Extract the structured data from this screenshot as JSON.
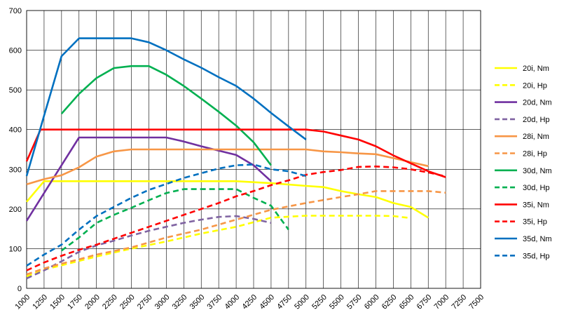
{
  "chart_data": {
    "type": "line",
    "title": "",
    "xlabel": "",
    "ylabel": "",
    "xlim": [
      1000,
      7500
    ],
    "ylim": [
      0,
      700
    ],
    "x_ticks": [
      1000,
      1250,
      1500,
      1750,
      2000,
      2250,
      2500,
      2750,
      3000,
      3250,
      3500,
      3750,
      4000,
      4250,
      4500,
      4750,
      5000,
      5250,
      5500,
      5750,
      6000,
      6250,
      6500,
      6750,
      7000,
      7250,
      7500
    ],
    "y_ticks": [
      0,
      100,
      200,
      300,
      400,
      500,
      600,
      700
    ],
    "grid": true,
    "legend_position": "right",
    "series": [
      {
        "name": "20i, Nm",
        "color": "#ffff00",
        "dash": false,
        "points": [
          [
            1000,
            218
          ],
          [
            1250,
            270
          ],
          [
            1500,
            270
          ],
          [
            2000,
            270
          ],
          [
            3000,
            270
          ],
          [
            4000,
            270
          ],
          [
            4500,
            265
          ],
          [
            5000,
            258
          ],
          [
            5250,
            255
          ],
          [
            5500,
            245
          ],
          [
            5750,
            237
          ],
          [
            6000,
            230
          ],
          [
            6250,
            215
          ],
          [
            6500,
            205
          ],
          [
            6750,
            178
          ]
        ]
      },
      {
        "name": "20i, Hp",
        "color": "#ffff00",
        "dash": true,
        "points": [
          [
            1000,
            30
          ],
          [
            1250,
            47
          ],
          [
            1500,
            58
          ],
          [
            2000,
            80
          ],
          [
            2500,
            100
          ],
          [
            3000,
            118
          ],
          [
            3500,
            138
          ],
          [
            4000,
            155
          ],
          [
            4500,
            178
          ],
          [
            5000,
            183
          ],
          [
            5500,
            183
          ],
          [
            6000,
            183
          ],
          [
            6250,
            182
          ],
          [
            6500,
            177
          ]
        ]
      },
      {
        "name": "20d, Nm",
        "color": "#7030a0",
        "dash": false,
        "points": [
          [
            1000,
            170
          ],
          [
            1250,
            240
          ],
          [
            1500,
            310
          ],
          [
            1750,
            380
          ],
          [
            2000,
            380
          ],
          [
            2500,
            380
          ],
          [
            3000,
            380
          ],
          [
            3250,
            370
          ],
          [
            3500,
            358
          ],
          [
            3750,
            347
          ],
          [
            4000,
            336
          ],
          [
            4250,
            310
          ],
          [
            4500,
            270
          ]
        ]
      },
      {
        "name": "20d, Hp",
        "color": "#8064a2",
        "dash": true,
        "points": [
          [
            1000,
            25
          ],
          [
            1250,
            45
          ],
          [
            1500,
            68
          ],
          [
            1750,
            92
          ],
          [
            2000,
            108
          ],
          [
            2250,
            120
          ],
          [
            2500,
            133
          ],
          [
            2750,
            145
          ],
          [
            3000,
            155
          ],
          [
            3250,
            165
          ],
          [
            3500,
            173
          ],
          [
            3750,
            180
          ],
          [
            4000,
            182
          ],
          [
            4250,
            175
          ],
          [
            4500,
            165
          ]
        ]
      },
      {
        "name": "28i, Nm",
        "color": "#f79646",
        "dash": false,
        "points": [
          [
            1000,
            262
          ],
          [
            1250,
            275
          ],
          [
            1500,
            285
          ],
          [
            1750,
            305
          ],
          [
            2000,
            332
          ],
          [
            2250,
            345
          ],
          [
            2500,
            350
          ],
          [
            3000,
            350
          ],
          [
            3500,
            350
          ],
          [
            4000,
            350
          ],
          [
            4500,
            350
          ],
          [
            5000,
            350
          ],
          [
            5250,
            345
          ],
          [
            5500,
            343
          ],
          [
            5750,
            340
          ],
          [
            6000,
            338
          ],
          [
            6250,
            328
          ],
          [
            6500,
            318
          ],
          [
            6750,
            308
          ]
        ]
      },
      {
        "name": "28i, Hp",
        "color": "#f79646",
        "dash": true,
        "points": [
          [
            1000,
            35
          ],
          [
            1250,
            50
          ],
          [
            1500,
            62
          ],
          [
            1750,
            73
          ],
          [
            2000,
            85
          ],
          [
            2500,
            103
          ],
          [
            3000,
            128
          ],
          [
            3500,
            148
          ],
          [
            4000,
            173
          ],
          [
            4500,
            198
          ],
          [
            5000,
            215
          ],
          [
            5500,
            230
          ],
          [
            5750,
            237
          ],
          [
            6000,
            245
          ],
          [
            6500,
            245
          ],
          [
            6750,
            245
          ],
          [
            7000,
            241
          ]
        ]
      },
      {
        "name": "30d, Nm",
        "color": "#00b050",
        "dash": false,
        "points": [
          [
            1500,
            440
          ],
          [
            1750,
            490
          ],
          [
            2000,
            530
          ],
          [
            2250,
            555
          ],
          [
            2500,
            560
          ],
          [
            2750,
            560
          ],
          [
            3000,
            538
          ],
          [
            3250,
            510
          ],
          [
            3500,
            478
          ],
          [
            3750,
            445
          ],
          [
            4000,
            410
          ],
          [
            4250,
            368
          ],
          [
            4500,
            310
          ]
        ]
      },
      {
        "name": "30d, Hp",
        "color": "#00b050",
        "dash": true,
        "points": [
          [
            1500,
            95
          ],
          [
            1750,
            128
          ],
          [
            2000,
            165
          ],
          [
            2250,
            185
          ],
          [
            2500,
            203
          ],
          [
            2750,
            222
          ],
          [
            3000,
            240
          ],
          [
            3250,
            250
          ],
          [
            3500,
            250
          ],
          [
            3750,
            250
          ],
          [
            4000,
            250
          ],
          [
            4250,
            228
          ],
          [
            4500,
            208
          ],
          [
            4750,
            148
          ]
        ]
      },
      {
        "name": "35i, Nm",
        "color": "#ff0000",
        "dash": false,
        "points": [
          [
            1000,
            320
          ],
          [
            1200,
            400
          ],
          [
            1500,
            400
          ],
          [
            2000,
            400
          ],
          [
            3000,
            400
          ],
          [
            4000,
            400
          ],
          [
            4500,
            400
          ],
          [
            4800,
            400
          ],
          [
            5000,
            400
          ],
          [
            5250,
            395
          ],
          [
            5500,
            385
          ],
          [
            5750,
            375
          ],
          [
            6000,
            358
          ],
          [
            6250,
            335
          ],
          [
            6500,
            315
          ],
          [
            6750,
            295
          ],
          [
            7000,
            280
          ]
        ]
      },
      {
        "name": "35i, Hp",
        "color": "#ff0000",
        "dash": true,
        "points": [
          [
            1000,
            45
          ],
          [
            1250,
            65
          ],
          [
            1500,
            82
          ],
          [
            1750,
            97
          ],
          [
            2000,
            110
          ],
          [
            2250,
            125
          ],
          [
            2500,
            140
          ],
          [
            2750,
            155
          ],
          [
            3000,
            170
          ],
          [
            3250,
            185
          ],
          [
            3500,
            200
          ],
          [
            3750,
            215
          ],
          [
            4000,
            232
          ],
          [
            4250,
            245
          ],
          [
            4500,
            260
          ],
          [
            4750,
            272
          ],
          [
            5000,
            286
          ],
          [
            5250,
            293
          ],
          [
            5500,
            298
          ],
          [
            5750,
            306
          ],
          [
            6000,
            307
          ],
          [
            6250,
            305
          ],
          [
            6500,
            300
          ],
          [
            6750,
            292
          ],
          [
            7000,
            282
          ]
        ]
      },
      {
        "name": "35d, Nm",
        "color": "#0070c0",
        "dash": false,
        "points": [
          [
            1000,
            283
          ],
          [
            1250,
            435
          ],
          [
            1500,
            585
          ],
          [
            1750,
            630
          ],
          [
            2000,
            630
          ],
          [
            2250,
            630
          ],
          [
            2500,
            630
          ],
          [
            2750,
            620
          ],
          [
            3000,
            600
          ],
          [
            3250,
            577
          ],
          [
            3500,
            556
          ],
          [
            3750,
            532
          ],
          [
            4000,
            510
          ],
          [
            4250,
            478
          ],
          [
            4500,
            442
          ],
          [
            4750,
            408
          ],
          [
            5000,
            375
          ]
        ]
      },
      {
        "name": "35d, Hp",
        "color": "#0070c0",
        "dash": true,
        "points": [
          [
            1000,
            57
          ],
          [
            1250,
            85
          ],
          [
            1500,
            110
          ],
          [
            1750,
            148
          ],
          [
            2000,
            182
          ],
          [
            2250,
            205
          ],
          [
            2500,
            228
          ],
          [
            2750,
            248
          ],
          [
            3000,
            263
          ],
          [
            3250,
            278
          ],
          [
            3500,
            290
          ],
          [
            3750,
            302
          ],
          [
            4000,
            310
          ],
          [
            4250,
            312
          ],
          [
            4500,
            300
          ],
          [
            4750,
            295
          ],
          [
            5000,
            283
          ]
        ]
      }
    ]
  }
}
